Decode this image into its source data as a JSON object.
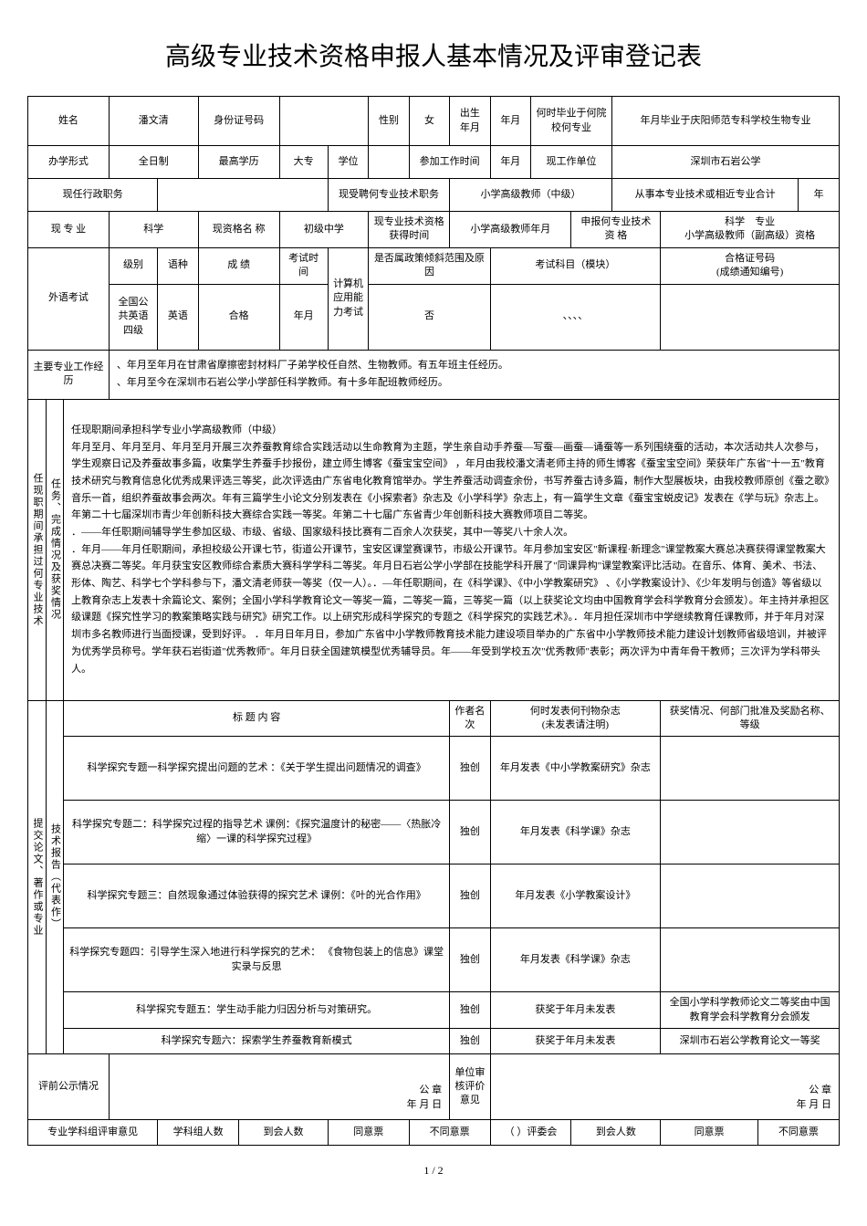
{
  "title": "高级专业技术资格申报人基本情况及评审登记表",
  "labels": {
    "name": "姓名",
    "idnum": "身份证号码",
    "gender": "性别",
    "birth": "出生\n年月",
    "gradschool": "何时毕业于何院校何专业",
    "gradschool_val": "年月毕业于庆阳师范专科学校生物专业",
    "form": "办学形式",
    "edu": "最高学历",
    "degree": "学位",
    "worktime": "参加工作时间",
    "workunit": "现工作单位",
    "curadmin": "现任行政职务",
    "curhired": "现受聘何专业技术职务",
    "fromprof": "从事本专业技术或相近专业合计",
    "curmajor": "现 专 业",
    "curqualname": "现资格名 称",
    "curqualtime": "现专业技术资格 获得时间",
    "applymajor": "申报何专业技术 资 格",
    "applymajor_val": "科学　专业\n小学高级教师（副高级）资格",
    "exam": "外语考试",
    "level": "级别",
    "lang": "语种",
    "score": "成 绩",
    "examtime": "考试时间",
    "computer": "计算机应用能力考试",
    "tilt": "是否属政策倾斜范围及原因",
    "subject": "考试科目（模块）",
    "certno": "合格证号码\n(成绩通知编号)",
    "mainwork": "主要专业工作经历",
    "side1": "任现职期间承担过何专业技术",
    "side2": "任务、完成情况及获奖情况",
    "pubhead1": "标 题 内 容",
    "pubhead2": "作者名次",
    "pubhead3": "何时发表何刊物杂志\n(未发表请注明)",
    "pubhead4": "获奖情况、何部门批准及奖励名称、等级",
    "pubside1": "提交论文、著作或专业",
    "pubside2": "技术报告（代表作）",
    "prepub": "评前公示情况",
    "seal": "公 章",
    "sealdate": "年 月 日",
    "unitopinion": "单位审核评价意见",
    "groupopinion": "专业学科组评审意见",
    "groupcount": "学科组人数",
    "present": "到会人数",
    "agree": "同意票",
    "disagree": "不同意票",
    "committee": "（ ）评委会",
    "present2": "到会人数",
    "agree2": "同意票",
    "disagree2": "不同意票",
    "year": "年",
    "ym": "年月"
  },
  "basic": {
    "name": "潘文清",
    "gender": "女",
    "form": "全日制",
    "edu": "大专",
    "workunit": "深圳市石岩公学",
    "curhired": "小学高级教师（中级）",
    "curmajor": "科学",
    "curqualname": "初级中学",
    "curqualtime": "小学高级教师年月",
    "exam_level": "全国公共英语四级",
    "exam_lang": "英语",
    "exam_score": "合格",
    "exam_time": "年月",
    "tilt": "否",
    "subject": "、、、、"
  },
  "mainwork": "、年月至年月在甘肃省摩擦密封材料厂子弟学校任自然、生物教师。有五年班主任经历。\n、年月至今在深圳市石岩公学小学部任科学教师。有十多年配班教师经历。",
  "narrative": "任现职期间承担科学专业小学高级教师（中级）\n年月至月、年月至月、年月至月开展三次养蚕教育综合实践活动以生命教育为主题，学生亲自动手养蚕—写蚕—画蚕—诵蚕等一系列围绕蚕的活动，本次活动共人次参与，学生观察日记及养蚕故事多篇，收集学生养蚕手抄报份，建立师生博客《蚕宝宝空间》 ，年月由我校潘文清老师主持的师生博客《蚕宝宝空间》荣获年广东省\"十一五\"教育技术研究与教育信息化优秀成果评选三等奖，此次评选由广东省电化教育馆举办。学生养蚕活动调查余份，书写养蚕古诗多篇，制作大型展板块，由我校教师原创《蚕之歌》音乐一首，组织养蚕故事会两次。年有三篇学生小论文分别发表在《小探索者》杂志及《小学科学》杂志上，有一篇学生文章《蚕宝宝蜕皮记》发表在《学与玩》杂志上。年第二十七届深圳市青少年创新科技大赛综合实践一等奖。年第二十七届广东省青少年创新科技大赛教师项目二等奖。\n．——年任职期间辅导学生参加区级、市级、省级、国家级科技比赛有二百余人次获奖，其中一等奖八十余人次。\n．年月——年月任职期间，承担校级公开课七节，街道公开课节，宝安区课堂赛课节，市级公开课节。年月参加宝安区\"新课程·新理念\"课堂教案大赛总决赛获得课堂教案大赛总决赛二等奖。年月获宝安区教师综合素质大赛科学学科二等奖。年月日石岩公学小学部在技能学科开展了\"同课异构\"课堂教案评比活动。在音乐、体育、美术、书法、形体、陶艺、科学七个学科参与下，潘文清老师获一等奖（仅一人）。．—年任职期间，在《科学课》、《中小学教案研究》 、《小学教案设计》、《少年发明与创造》等省级以上教育杂志上发表十余篇论文、案例；全国小学科学教育论文一等奖一篇，二等奖一篇，三等奖一篇（以上获奖论文均由中国教育学会科学教育分会颁发）。年主持并承担区级课题《探究性学习的教案策略实践与研究》研究工作。以上研究形成科学探究的专题之《科学探究的实践艺术》。．年月担任深圳市中学继续教育任课教师，并于年月对深圳市多名教师进行当面授课，受到好评。 ．年月日年月日，参加广东省中小学教师教育技术能力建设项目举办的广东省中小学教师技术能力建设计划教师省级培训，并被评为优秀学员称号。学年获石岩街道\"优秀教师\"。年月日获全国建筑模型优秀辅导员。年——年受到学校五次\"优秀教师\"表彰；两次评为中青年骨干教师；三次评为学科带头人。",
  "pubs": [
    {
      "title": "科学探究专题一科学探究提出问题的艺术 ：《关于学生提出问题情况的调查》",
      "author": "独创",
      "journal": "年月发表《中小学教案研究》杂志",
      "award": ""
    },
    {
      "title": "科学探究专题二：科学探究过程的指导艺术 课例：《探究温度计的秘密——〈热胀冷缩〉一课的科学探究过程》",
      "author": "独创",
      "journal": "年月发表《科学课》杂志",
      "award": ""
    },
    {
      "title": "科学探究专题三：自然现象通过体验获得的探究艺术 课例：《叶的光合作用》",
      "author": "独创",
      "journal": "年月发表《小学教案设计》",
      "award": ""
    },
    {
      "title": "科学探究专题四：引导学生深入地进行科学探究的艺术： 《食物包装上的信息》课堂实录与反思",
      "author": "独创",
      "journal": "年月发表《科学课》杂志",
      "award": ""
    },
    {
      "title": "科学探究专题五：学生动手能力归因分析与对策研究。",
      "author": "独创",
      "journal": "获奖于年月未发表",
      "award": "全国小学科学教师论文二等奖由中国教育学会科学教育分会颁发"
    },
    {
      "title": "科学探究专题六：探索学生养蚕教育新模式",
      "author": "独创",
      "journal": "获奖于年月未发表",
      "award": "深圳市石岩公学教育论文一等奖"
    }
  ],
  "footer": "1 / 2"
}
